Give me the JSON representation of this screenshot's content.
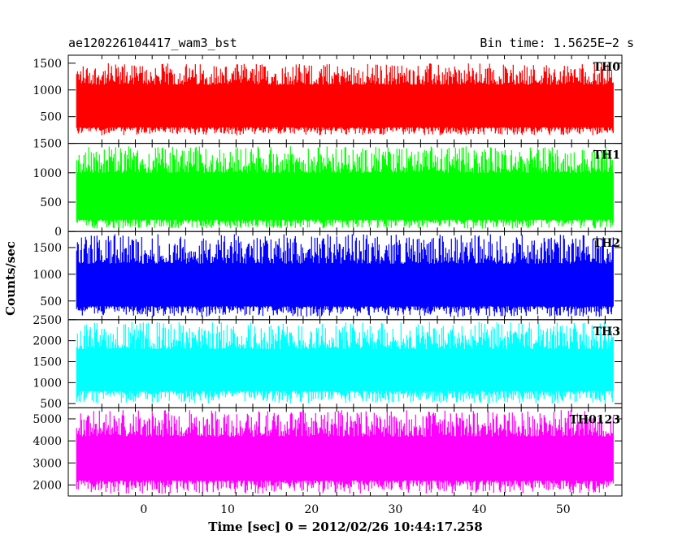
{
  "header": {
    "title": "ae120226104417_wam3_bst",
    "bin_time": "Bin time: 1.5625E−2 s"
  },
  "chart_data": {
    "type": "line",
    "xlabel": "Time [sec] 0 = 2012/02/26 10:44:17.258",
    "ylabel": "Counts/sec",
    "xlim": [
      -9,
      57
    ],
    "x_ticks": [
      0,
      10,
      20,
      30,
      40,
      50
    ],
    "x_range_data": [
      -8,
      56
    ],
    "bin_time_s": 0.015625,
    "grid": false,
    "panels": [
      {
        "name": "TH0",
        "color": "#ff0000",
        "ylim": [
          0,
          1650
        ],
        "ticks": [
          500,
          1000,
          1500
        ],
        "band": [
          150,
          1500
        ],
        "core": [
          300,
          1100
        ],
        "mean": 700
      },
      {
        "name": "TH1",
        "color": "#00ff00",
        "ylim": [
          0,
          1500
        ],
        "ticks": [
          0,
          500,
          1000,
          1500
        ],
        "band": [
          50,
          1450
        ],
        "core": [
          200,
          1000
        ],
        "mean": 600
      },
      {
        "name": "TH2",
        "color": "#0000ff",
        "ylim": [
          150,
          1800
        ],
        "ticks": [
          500,
          1000,
          1500
        ],
        "band": [
          200,
          1750
        ],
        "core": [
          400,
          1200
        ],
        "mean": 750
      },
      {
        "name": "TH3",
        "color": "#00ffff",
        "ylim": [
          400,
          2500
        ],
        "ticks": [
          500,
          1000,
          1500,
          2000,
          2500
        ],
        "band": [
          500,
          2450
        ],
        "core": [
          800,
          1800
        ],
        "mean": 1300
      },
      {
        "name": "TH0123",
        "color": "#ff00ff",
        "ylim": [
          1500,
          5500
        ],
        "ticks": [
          2000,
          3000,
          4000,
          5000
        ],
        "band": [
          1600,
          5400
        ],
        "core": [
          2200,
          4200
        ],
        "mean": 3400
      }
    ]
  }
}
